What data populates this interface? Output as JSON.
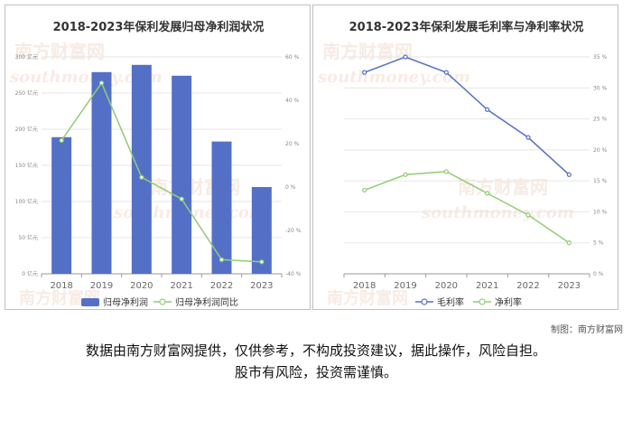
{
  "chart_data": [
    {
      "type": "bar+line",
      "title": "2018-2023年保利发展归母净利润状况",
      "categories": [
        "2018",
        "2019",
        "2020",
        "2021",
        "2022",
        "2023"
      ],
      "series": [
        {
          "name": "归母净利润",
          "type": "bar",
          "axis": "left",
          "values": [
            189,
            279,
            289,
            274,
            183,
            120
          ],
          "color": "#5470c6"
        },
        {
          "name": "归母净利润同比",
          "type": "line",
          "axis": "right",
          "values": [
            21.5,
            48,
            4.5,
            -5.5,
            -33.5,
            -34.5
          ],
          "color": "#91cc75"
        }
      ],
      "y_left": {
        "ticks": [
          "0 亿元",
          "50 亿元",
          "100 亿元",
          "150 亿元",
          "200 亿元",
          "250 亿元",
          "300 亿元"
        ],
        "min": 0,
        "max": 300
      },
      "y_right": {
        "ticks": [
          "-40 %",
          "-20 %",
          "0 %",
          "20 %",
          "40 %",
          "60 %"
        ],
        "min": -40,
        "max": 60
      },
      "legend_position": "bottom"
    },
    {
      "type": "line",
      "title": "2018-2023年保利发展毛利率与净利率状况",
      "categories": [
        "2018",
        "2019",
        "2020",
        "2021",
        "2022",
        "2023"
      ],
      "series": [
        {
          "name": "毛利率",
          "values": [
            32.5,
            35,
            32.5,
            26.5,
            22,
            16
          ],
          "color": "#5470c6"
        },
        {
          "name": "净利率",
          "values": [
            13.5,
            16,
            16.5,
            13,
            9.5,
            5
          ],
          "color": "#91cc75"
        }
      ],
      "y_right": {
        "ticks": [
          "0 %",
          "5 %",
          "10 %",
          "15 %",
          "20 %",
          "25 %",
          "30 %",
          "35 %"
        ],
        "min": 0,
        "max": 35
      },
      "legend_position": "bottom"
    }
  ],
  "watermark": {
    "cn": "南方财富网",
    "en": "southmoney.com"
  },
  "credit": "制图：南方财富网",
  "disclaimer": {
    "line1": "数据由南方财富网提供，仅供参考，不构成投资建议，据此操作，风险自担。",
    "line2": "股市有风险，投资需谨慎。"
  }
}
